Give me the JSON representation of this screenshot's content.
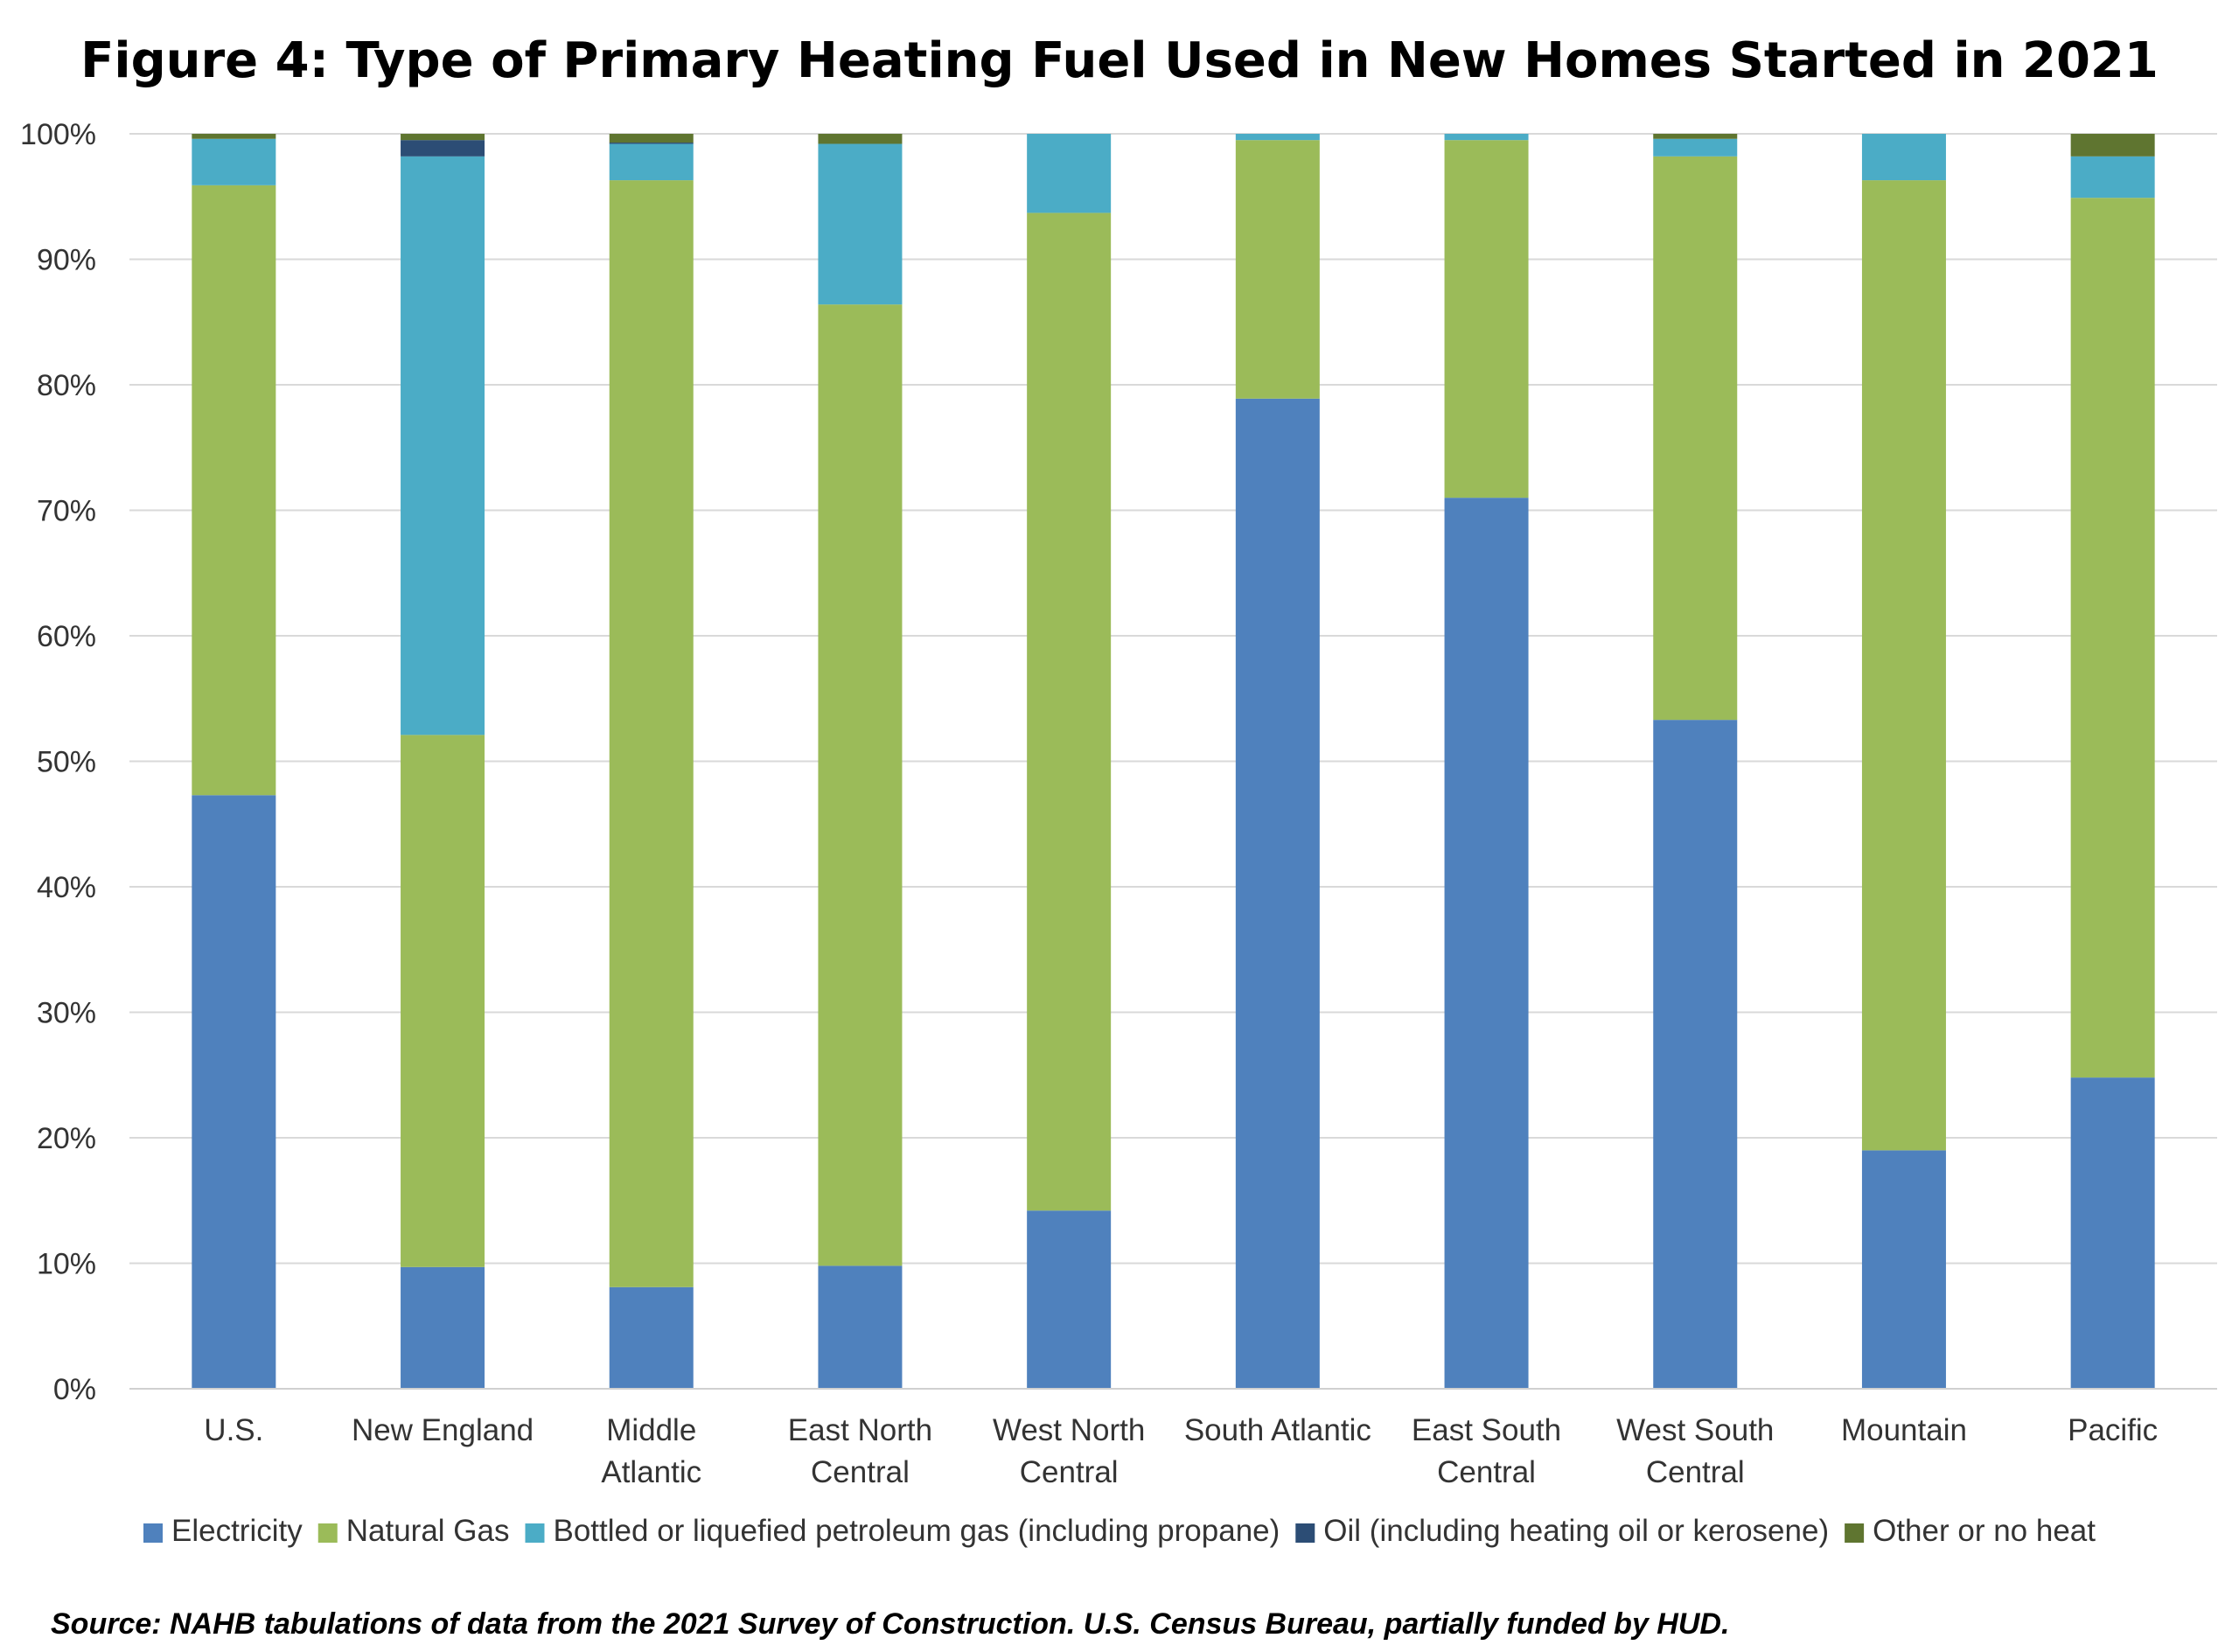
{
  "chart_data": {
    "type": "bar",
    "stacked": true,
    "title": "Figure 4: Type of Primary Heating Fuel Used in New Homes Started in 2021",
    "categories": [
      "U.S.",
      "New England",
      "Middle Atlantic",
      "East North Central",
      "West North Central",
      "South Atlantic",
      "East South Central",
      "West South Central",
      "Mountain",
      "Pacific"
    ],
    "series": [
      {
        "name": "Electricity",
        "color": "#4F81BD",
        "values": [
          47.3,
          9.7,
          8.1,
          9.8,
          14.2,
          78.9,
          71.0,
          53.3,
          19.0,
          24.8
        ]
      },
      {
        "name": "Natural Gas",
        "color": "#9BBB59",
        "values": [
          48.6,
          42.4,
          88.2,
          76.6,
          79.5,
          20.6,
          28.5,
          44.9,
          77.3,
          70.1
        ]
      },
      {
        "name": "Bottled or liquefied petroleum gas (including propane)",
        "color": "#4BACC6",
        "values": [
          3.7,
          46.1,
          2.9,
          12.8,
          6.3,
          0.5,
          0.5,
          1.4,
          3.7,
          3.3
        ]
      },
      {
        "name": "Oil (including heating oil or kerosene)",
        "color": "#2C4D75",
        "values": [
          0.0,
          1.3,
          0.1,
          0.0,
          0.0,
          0.0,
          0.0,
          0.0,
          0.0,
          0.0
        ]
      },
      {
        "name": "Other or no heat",
        "color": "#5F7530",
        "values": [
          0.4,
          0.5,
          0.7,
          0.8,
          0.0,
          0.0,
          0.0,
          0.4,
          0.0,
          1.8
        ]
      }
    ],
    "ylim": [
      0,
      100
    ],
    "yticks": [
      "0%",
      "10%",
      "20%",
      "30%",
      "40%",
      "50%",
      "60%",
      "70%",
      "80%",
      "90%",
      "100%"
    ],
    "grid": true,
    "legend": "bottom",
    "source": "Source: NAHB tabulations of data from the 2021 Survey of Construction. U.S. Census Bureau, partially funded by HUD."
  }
}
